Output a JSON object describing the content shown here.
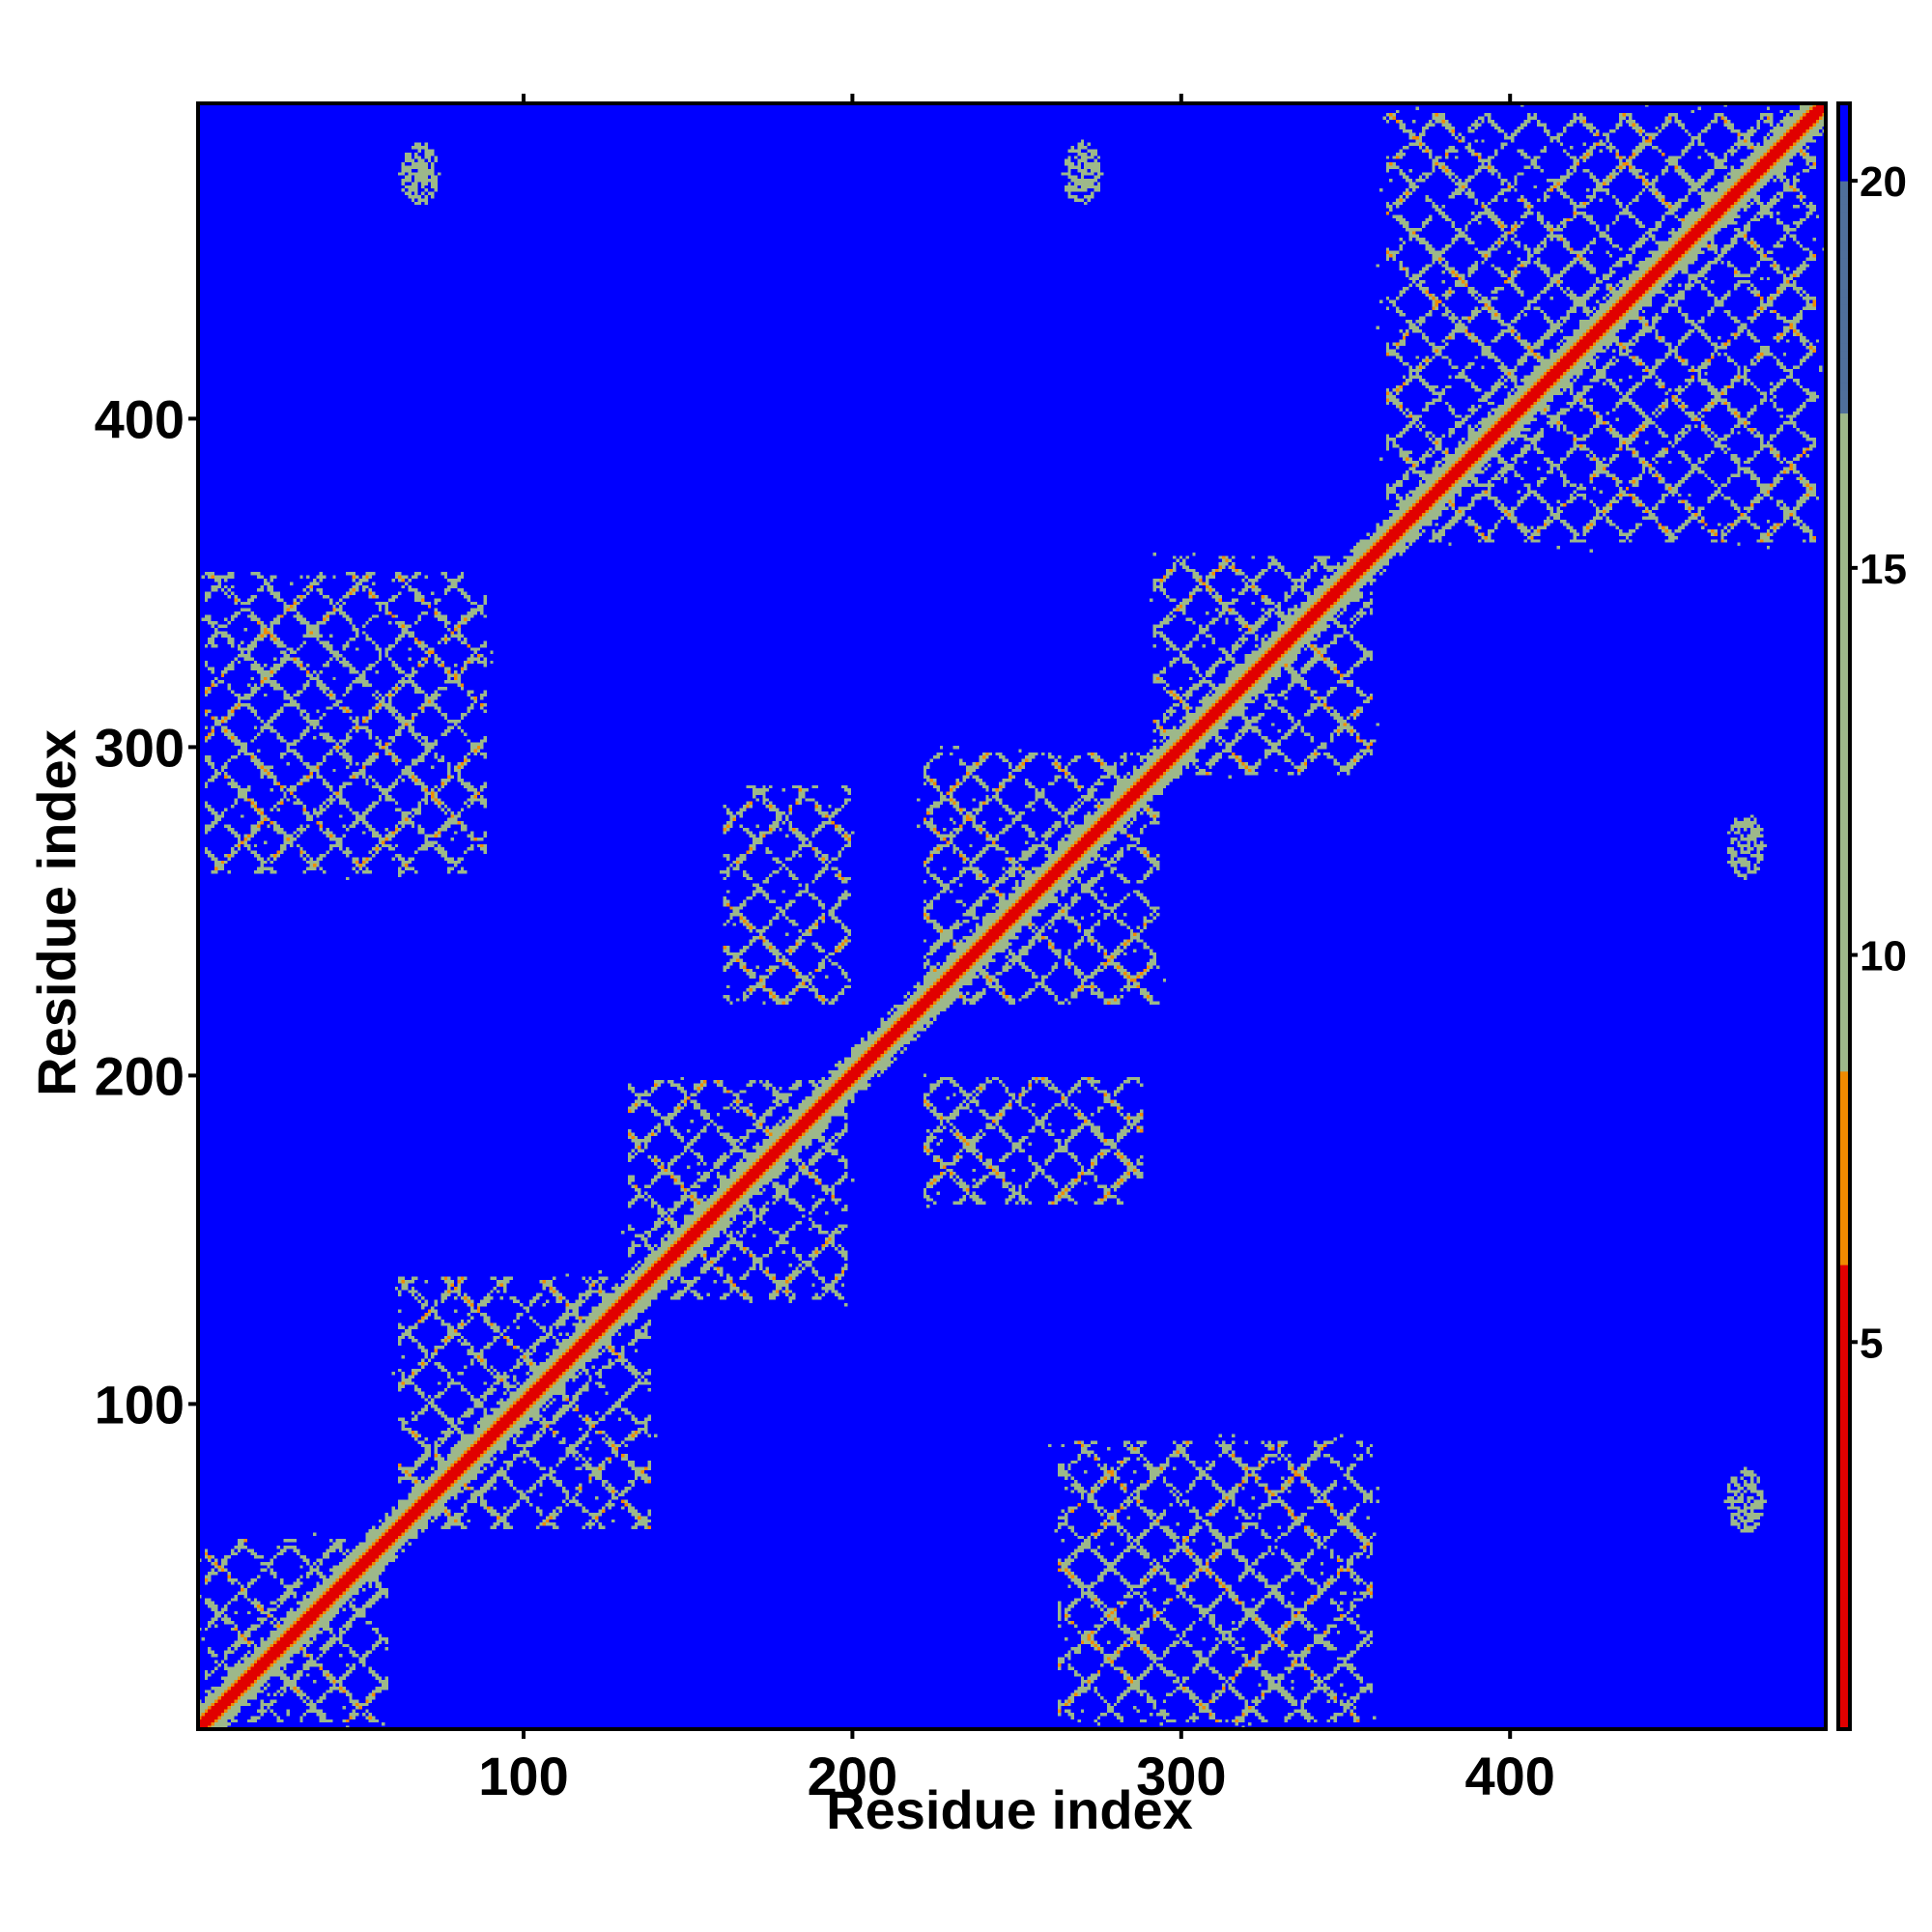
{
  "chart_data": {
    "type": "heatmap",
    "title": "",
    "xlabel": "Residue index",
    "ylabel": "Residue index",
    "xlim": [
      1,
      496
    ],
    "ylim": [
      1,
      496
    ],
    "x_ticks": [
      100,
      200,
      300,
      400
    ],
    "y_ticks": [
      100,
      200,
      300,
      400
    ],
    "colorbar": {
      "range": [
        0,
        21
      ],
      "ticks": [
        5,
        10,
        15,
        20
      ],
      "colors": {
        "low": "#e10000",
        "mid_low": "#f08a00",
        "mid": "#9db88a",
        "high": "#4f6f9a",
        "background": "#0000ff"
      }
    },
    "structure": {
      "diagonal_value": 3.8,
      "diagonal_band_width": 2,
      "contact_regions": [
        {
          "x": [
            360,
            496
          ],
          "y": [
            360,
            496
          ],
          "level": 12
        },
        {
          "x": [
            290,
            360
          ],
          "y": [
            290,
            360
          ],
          "level": 11
        },
        {
          "x": [
            220,
            295
          ],
          "y": [
            220,
            300
          ],
          "level": 11
        },
        {
          "x": [
            130,
            200
          ],
          "y": [
            130,
            200
          ],
          "level": 11
        },
        {
          "x": [
            60,
            140
          ],
          "y": [
            60,
            140
          ],
          "level": 11
        },
        {
          "x": [
            1,
            60
          ],
          "y": [
            1,
            60
          ],
          "level": 12
        },
        {
          "x": [
            1,
            90
          ],
          "y": [
            260,
            355
          ],
          "level": 11
        },
        {
          "x": [
            260,
            360
          ],
          "y": [
            1,
            90
          ],
          "level": 11
        },
        {
          "x": [
            160,
            200
          ],
          "y": [
            220,
            290
          ],
          "level": 12
        },
        {
          "x": [
            220,
            290
          ],
          "y": [
            160,
            200
          ],
          "level": 12
        }
      ],
      "outliers": [
        {
          "x": 472,
          "y": 270,
          "level": 13
        },
        {
          "x": 472,
          "y": 70,
          "level": 13
        },
        {
          "x": 68,
          "y": 475,
          "level": 14
        },
        {
          "x": 270,
          "y": 475,
          "level": 14
        }
      ]
    }
  }
}
